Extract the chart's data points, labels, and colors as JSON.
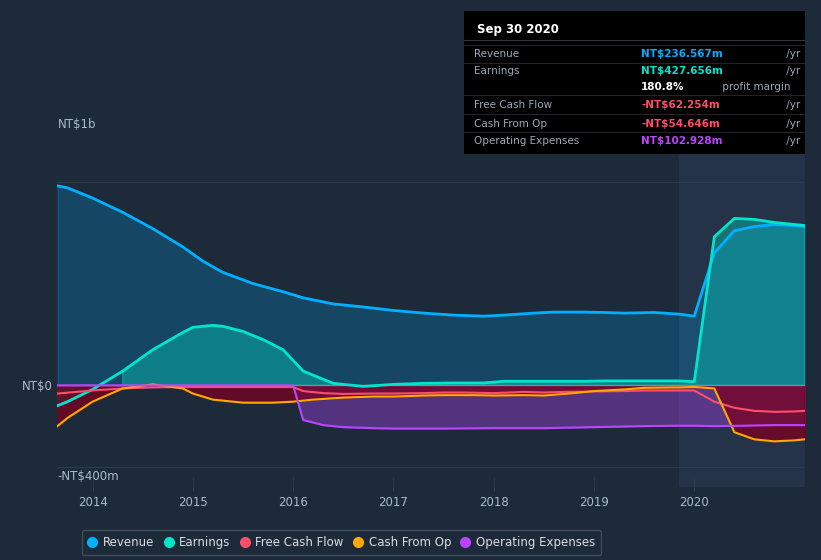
{
  "background_color": "#1c2a3a",
  "plot_bg_color": "#1c2a3a",
  "highlight_bg_color": "#243347",
  "ylabel_top": "NT$1b",
  "ylabel_bottom": "-NT$400m",
  "ylabel_zero": "NT$0",
  "x_ticks": [
    2014,
    2015,
    2016,
    2017,
    2018,
    2019,
    2020
  ],
  "x_min": 2013.65,
  "x_max": 2021.1,
  "y_min": -500,
  "y_max": 1150,
  "y_zero": 0,
  "y_top_gridline": 1000,
  "y_mid_gridline": 500,
  "y_bot_gridline": -400,
  "highlight_x_start": 2019.85,
  "highlight_x_end": 2021.1,
  "colors": {
    "revenue": "#00b0ff",
    "earnings": "#00e5cc",
    "free_cash_flow": "#ff4d6a",
    "cash_from_op": "#ffaa00",
    "operating_expenses": "#bb44ff"
  },
  "revenue": {
    "x": [
      2013.65,
      2013.75,
      2014.0,
      2014.3,
      2014.6,
      2014.9,
      2015.1,
      2015.3,
      2015.6,
      2015.9,
      2016.1,
      2016.4,
      2016.7,
      2017.0,
      2017.3,
      2017.6,
      2017.9,
      2018.1,
      2018.4,
      2018.6,
      2018.9,
      2019.1,
      2019.3,
      2019.6,
      2019.85,
      2020.0,
      2020.2,
      2020.4,
      2020.6,
      2020.8,
      2021.0,
      2021.1
    ],
    "y": [
      980,
      970,
      920,
      850,
      770,
      680,
      610,
      555,
      500,
      460,
      430,
      400,
      385,
      368,
      355,
      345,
      340,
      345,
      355,
      360,
      360,
      358,
      355,
      358,
      350,
      340,
      650,
      760,
      780,
      790,
      785,
      780
    ]
  },
  "earnings": {
    "x": [
      2013.65,
      2013.75,
      2014.0,
      2014.3,
      2014.6,
      2014.9,
      2015.0,
      2015.1,
      2015.2,
      2015.3,
      2015.5,
      2015.7,
      2015.9,
      2016.1,
      2016.4,
      2016.7,
      2017.0,
      2017.3,
      2017.6,
      2017.9,
      2018.1,
      2018.4,
      2018.6,
      2018.9,
      2019.1,
      2019.3,
      2019.6,
      2019.85,
      2020.0,
      2020.2,
      2020.4,
      2020.6,
      2020.8,
      2021.0,
      2021.1
    ],
    "y": [
      -100,
      -80,
      -20,
      70,
      175,
      260,
      285,
      290,
      295,
      290,
      265,
      225,
      175,
      70,
      10,
      -5,
      5,
      10,
      12,
      12,
      20,
      20,
      20,
      20,
      22,
      22,
      22,
      22,
      18,
      730,
      820,
      815,
      800,
      790,
      785
    ]
  },
  "free_cash_flow": {
    "x": [
      2013.65,
      2014.0,
      2014.3,
      2014.6,
      2014.9,
      2015.2,
      2015.5,
      2015.8,
      2016.0,
      2016.1,
      2016.3,
      2016.5,
      2016.8,
      2017.0,
      2017.3,
      2017.5,
      2017.7,
      2018.0,
      2018.3,
      2018.5,
      2018.7,
      2019.0,
      2019.3,
      2019.5,
      2019.85,
      2020.0,
      2020.2,
      2020.4,
      2020.6,
      2020.8,
      2021.0,
      2021.1
    ],
    "y": [
      -40,
      -25,
      -15,
      -10,
      -8,
      -8,
      -8,
      -8,
      -8,
      -28,
      -38,
      -42,
      -40,
      -40,
      -38,
      -35,
      -35,
      -38,
      -32,
      -35,
      -32,
      -30,
      -28,
      -25,
      -25,
      -25,
      -80,
      -110,
      -125,
      -130,
      -128,
      -125
    ]
  },
  "cash_from_op": {
    "x": [
      2013.65,
      2013.75,
      2014.0,
      2014.3,
      2014.6,
      2014.9,
      2015.0,
      2015.2,
      2015.5,
      2015.8,
      2016.0,
      2016.2,
      2016.5,
      2016.8,
      2017.0,
      2017.3,
      2017.5,
      2017.8,
      2018.0,
      2018.3,
      2018.5,
      2018.8,
      2019.0,
      2019.3,
      2019.5,
      2019.8,
      2019.85,
      2020.0,
      2020.2,
      2020.4,
      2020.6,
      2020.8,
      2021.0,
      2021.1
    ],
    "y": [
      -200,
      -160,
      -80,
      -15,
      5,
      -15,
      -40,
      -70,
      -85,
      -85,
      -80,
      -70,
      -60,
      -55,
      -55,
      -50,
      -48,
      -48,
      -50,
      -48,
      -50,
      -38,
      -28,
      -20,
      -12,
      -10,
      -10,
      -8,
      -15,
      -230,
      -265,
      -275,
      -270,
      -265
    ]
  },
  "operating_expenses": {
    "x": [
      2013.65,
      2014.0,
      2014.5,
      2014.9,
      2015.2,
      2015.8,
      2016.0,
      2016.1,
      2016.3,
      2016.5,
      2016.8,
      2017.0,
      2017.5,
      2018.0,
      2018.5,
      2019.0,
      2019.5,
      2019.85,
      2020.0,
      2020.2,
      2020.5,
      2020.8,
      2021.0,
      2021.1
    ],
    "y": [
      0,
      0,
      0,
      0,
      0,
      0,
      0,
      -170,
      -195,
      -205,
      -210,
      -212,
      -212,
      -210,
      -210,
      -205,
      -200,
      -198,
      -198,
      -200,
      -198,
      -195,
      -195,
      -195
    ]
  },
  "info_box": {
    "title": "Sep 30 2020",
    "rows": [
      {
        "label": "Revenue",
        "value": "NT$236.567m",
        "value_color": "#00b0ff",
        "suffix": " /yr"
      },
      {
        "label": "Earnings",
        "value": "NT$427.656m",
        "value_color": "#00e5cc",
        "suffix": " /yr"
      },
      {
        "label": "",
        "value": "180.8%",
        "value_color": "#ffffff",
        "suffix": " profit margin"
      },
      {
        "label": "Free Cash Flow",
        "value": "-NT$62.254m",
        "value_color": "#ff4d6a",
        "suffix": " /yr"
      },
      {
        "label": "Cash From Op",
        "value": "-NT$54.646m",
        "value_color": "#ff4d6a",
        "suffix": " /yr"
      },
      {
        "label": "Operating Expenses",
        "value": "NT$102.928m",
        "value_color": "#bb44ff",
        "suffix": " /yr"
      }
    ]
  },
  "legend_items": [
    {
      "label": "Revenue",
      "color": "#00b0ff"
    },
    {
      "label": "Earnings",
      "color": "#00e5cc"
    },
    {
      "label": "Free Cash Flow",
      "color": "#ff4d6a"
    },
    {
      "label": "Cash From Op",
      "color": "#ffaa00"
    },
    {
      "label": "Operating Expenses",
      "color": "#bb44ff"
    }
  ]
}
